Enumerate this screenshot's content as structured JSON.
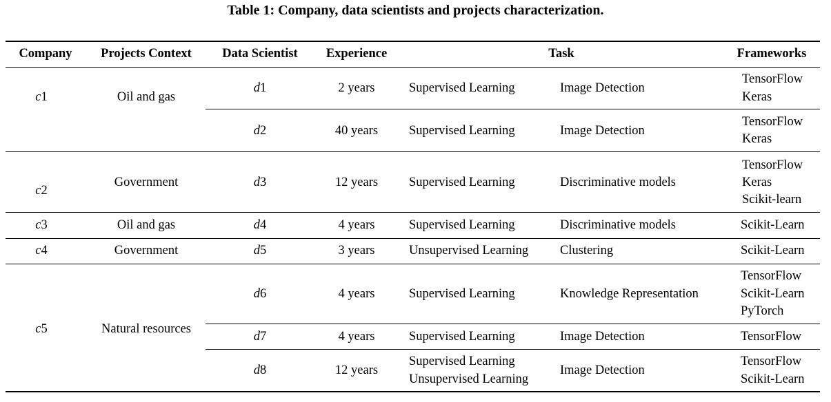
{
  "caption": "Table 1: Company, data scientists and projects characterization.",
  "headers": {
    "company": "Company",
    "context": "Projects Context",
    "scientist": "Data Scientist",
    "experience": "Experience",
    "task": "Task",
    "frameworks": "Frameworks"
  },
  "companies": [
    {
      "id_prefix": "c",
      "id_num": "1",
      "context": "Oil and gas"
    },
    {
      "id_prefix": "c",
      "id_num": "2",
      "context": "Government"
    },
    {
      "id_prefix": "c",
      "id_num": "3",
      "context": "Oil and gas"
    },
    {
      "id_prefix": "c",
      "id_num": "4",
      "context": "Government"
    },
    {
      "id_prefix": "c",
      "id_num": "5",
      "context": "Natural resources"
    }
  ],
  "rows": [
    {
      "ds_prefix": "d",
      "ds_num": "1",
      "experience": "2 years",
      "learning": [
        "Supervised Learning"
      ],
      "task": "Image Detection",
      "frameworks": [
        "TensorFlow",
        "Keras"
      ]
    },
    {
      "ds_prefix": "d",
      "ds_num": "2",
      "experience": "40 years",
      "learning": [
        "Supervised Learning"
      ],
      "task": "Image Detection",
      "frameworks": [
        "TensorFlow",
        "Keras"
      ]
    },
    {
      "ds_prefix": "d",
      "ds_num": "3",
      "experience": "12 years",
      "learning": [
        "Supervised Learning"
      ],
      "task": "Discriminative models",
      "frameworks": [
        "TensorFlow",
        "Keras",
        "Scikit-learn"
      ]
    },
    {
      "ds_prefix": "d",
      "ds_num": "4",
      "experience": "4 years",
      "learning": [
        "Supervised Learning"
      ],
      "task": "Discriminative models",
      "frameworks": [
        "Scikit-Learn"
      ]
    },
    {
      "ds_prefix": "d",
      "ds_num": "5",
      "experience": "3 years",
      "learning": [
        "Unsupervised Learning"
      ],
      "task": "Clustering",
      "frameworks": [
        "Scikit-Learn"
      ]
    },
    {
      "ds_prefix": "d",
      "ds_num": "6",
      "experience": "4 years",
      "learning": [
        "Supervised Learning"
      ],
      "task": "Knowledge Representation",
      "frameworks": [
        "TensorFlow",
        "Scikit-Learn",
        "PyTorch"
      ]
    },
    {
      "ds_prefix": "d",
      "ds_num": "7",
      "experience": "4 years",
      "learning": [
        "Supervised Learning"
      ],
      "task": "Image Detection",
      "frameworks": [
        "TensorFlow"
      ]
    },
    {
      "ds_prefix": "d",
      "ds_num": "8",
      "experience": "12 years",
      "learning": [
        "Supervised Learning",
        "Unsupervised Learning"
      ],
      "task": "Image Detection",
      "frameworks": [
        "TensorFlow",
        "Scikit-Learn"
      ]
    }
  ]
}
